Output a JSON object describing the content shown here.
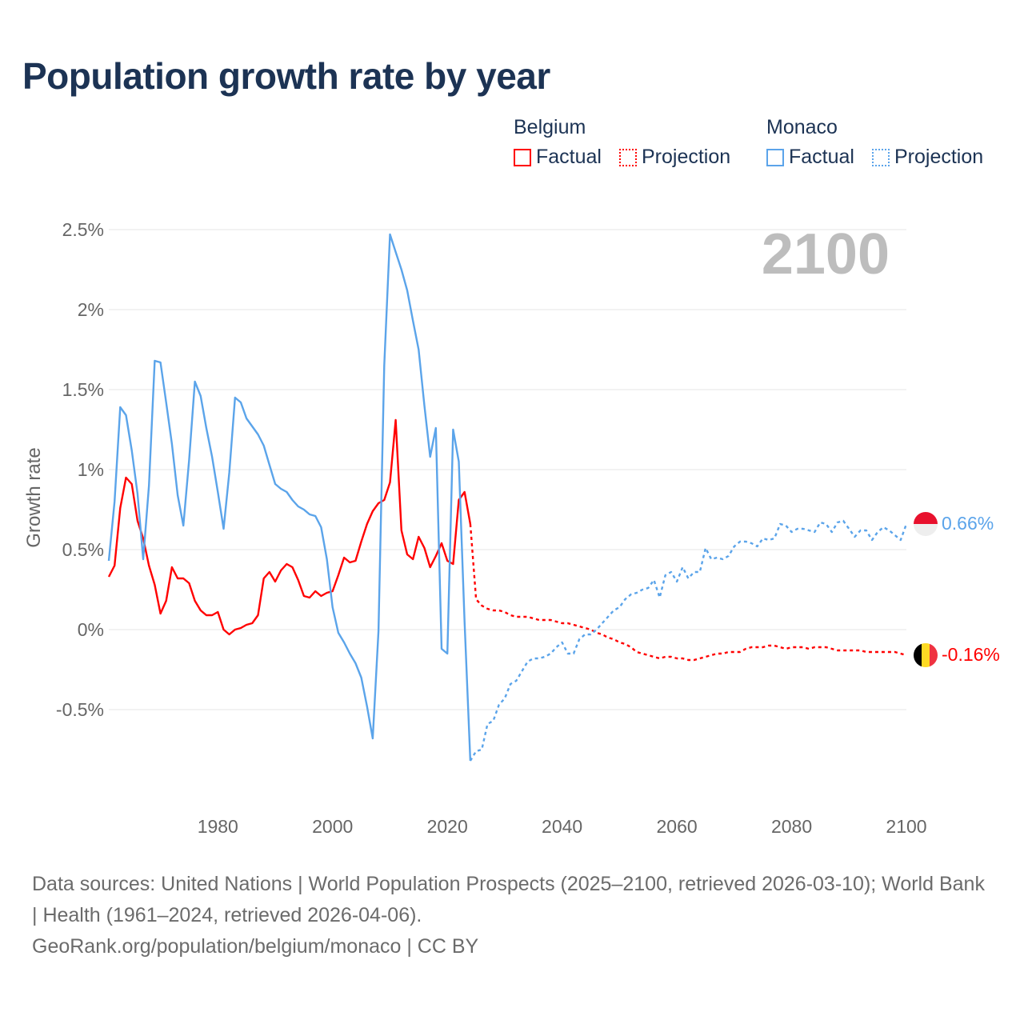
{
  "title": "Population growth rate by year",
  "legend": {
    "belgium": {
      "name": "Belgium",
      "factual": "Factual",
      "projection": "Projection"
    },
    "monaco": {
      "name": "Monaco",
      "factual": "Factual",
      "projection": "Projection"
    }
  },
  "year_watermark": "2100",
  "end_labels": {
    "monaco": "0.66%",
    "belgium": "-0.16%"
  },
  "sources": {
    "line1": "Data sources: United Nations | World Population Prospects (2025–2100, retrieved 2026-03-10); World Bank | Health (1961–2024, retrieved 2026-04-06).",
    "line2": "GeoRank.org/population/belgium/monaco | CC BY"
  },
  "colors": {
    "belgium": "#ff0000",
    "monaco": "#5ba4ea",
    "title": "#1c3354",
    "grid": "#e6e6e6",
    "watermark": "#bdbdbd"
  },
  "chart_data": {
    "type": "line",
    "title": "Population growth rate by year",
    "xlabel": "",
    "ylabel": "Growth rate",
    "xlim": [
      1961,
      2100
    ],
    "ylim": [
      -1.1,
      2.6
    ],
    "grid": true,
    "legend_position": "top-right",
    "x_ticks": [
      1980,
      2000,
      2020,
      2040,
      2060,
      2080,
      2100
    ],
    "y_ticks": [
      {
        "v": 2.5,
        "label": "2.5%"
      },
      {
        "v": 2,
        "label": "2%"
      },
      {
        "v": 1.5,
        "label": "1.5%"
      },
      {
        "v": 1,
        "label": "1%"
      },
      {
        "v": 0.5,
        "label": "0.5%"
      },
      {
        "v": 0,
        "label": "0%"
      },
      {
        "v": -0.5,
        "label": "-0.5%"
      }
    ],
    "series": [
      {
        "name": "Belgium Factual",
        "key": "belgium",
        "dashed": false,
        "start": 1961,
        "values": [
          0.33,
          0.4,
          0.76,
          0.95,
          0.91,
          0.68,
          0.57,
          0.4,
          0.28,
          0.1,
          0.18,
          0.39,
          0.32,
          0.32,
          0.29,
          0.18,
          0.12,
          0.09,
          0.09,
          0.11,
          0.0,
          -0.03,
          0.0,
          0.01,
          0.03,
          0.04,
          0.09,
          0.32,
          0.36,
          0.3,
          0.37,
          0.41,
          0.39,
          0.31,
          0.21,
          0.2,
          0.24,
          0.21,
          0.23,
          0.24,
          0.34,
          0.45,
          0.42,
          0.43,
          0.55,
          0.66,
          0.74,
          0.79,
          0.81,
          0.92,
          1.31,
          0.62,
          0.47,
          0.44,
          0.58,
          0.51,
          0.39,
          0.46,
          0.54,
          0.43,
          0.41,
          0.81,
          0.86,
          0.66
        ]
      },
      {
        "name": "Belgium Projection",
        "key": "belgium",
        "dashed": true,
        "start": 2024,
        "values": [
          0.66,
          0.19,
          0.15,
          0.13,
          0.12,
          0.12,
          0.11,
          0.09,
          0.08,
          0.08,
          0.08,
          0.07,
          0.06,
          0.06,
          0.06,
          0.05,
          0.04,
          0.04,
          0.03,
          0.02,
          0.01,
          0.0,
          -0.02,
          -0.03,
          -0.05,
          -0.06,
          -0.08,
          -0.09,
          -0.11,
          -0.14,
          -0.15,
          -0.16,
          -0.17,
          -0.18,
          -0.17,
          -0.17,
          -0.18,
          -0.18,
          -0.19,
          -0.19,
          -0.18,
          -0.17,
          -0.16,
          -0.15,
          -0.15,
          -0.14,
          -0.14,
          -0.14,
          -0.12,
          -0.11,
          -0.11,
          -0.11,
          -0.1,
          -0.1,
          -0.11,
          -0.12,
          -0.11,
          -0.11,
          -0.11,
          -0.12,
          -0.11,
          -0.11,
          -0.11,
          -0.12,
          -0.13,
          -0.13,
          -0.13,
          -0.13,
          -0.13,
          -0.14,
          -0.14,
          -0.14,
          -0.14,
          -0.14,
          -0.14,
          -0.15,
          -0.16
        ]
      },
      {
        "name": "Monaco Factual",
        "key": "monaco",
        "dashed": false,
        "start": 1961,
        "values": [
          0.43,
          0.8,
          1.39,
          1.34,
          1.12,
          0.85,
          0.44,
          0.9,
          1.68,
          1.67,
          1.42,
          1.16,
          0.84,
          0.65,
          1.06,
          1.55,
          1.46,
          1.26,
          1.08,
          0.86,
          0.63,
          0.98,
          1.45,
          1.42,
          1.32,
          1.27,
          1.22,
          1.15,
          1.03,
          0.91,
          0.88,
          0.86,
          0.81,
          0.77,
          0.75,
          0.72,
          0.71,
          0.64,
          0.44,
          0.14,
          -0.02,
          -0.08,
          -0.15,
          -0.21,
          -0.3,
          -0.48,
          -0.68,
          -0.01,
          1.65,
          2.47,
          2.36,
          2.25,
          2.12,
          1.93,
          1.75,
          1.4,
          1.08,
          1.26,
          -0.12,
          -0.15,
          1.25,
          1.05,
          0.05,
          -0.82
        ]
      },
      {
        "name": "Monaco Projection",
        "key": "monaco",
        "dashed": true,
        "start": 2024,
        "values": [
          -0.82,
          -0.76,
          -0.75,
          -0.59,
          -0.57,
          -0.47,
          -0.43,
          -0.34,
          -0.32,
          -0.26,
          -0.2,
          -0.18,
          -0.18,
          -0.17,
          -0.15,
          -0.11,
          -0.08,
          -0.15,
          -0.15,
          -0.06,
          -0.03,
          -0.03,
          0.0,
          0.04,
          0.08,
          0.12,
          0.14,
          0.19,
          0.22,
          0.23,
          0.25,
          0.26,
          0.31,
          0.2,
          0.34,
          0.36,
          0.3,
          0.39,
          0.32,
          0.36,
          0.36,
          0.51,
          0.44,
          0.45,
          0.44,
          0.46,
          0.52,
          0.55,
          0.55,
          0.54,
          0.52,
          0.57,
          0.56,
          0.57,
          0.66,
          0.65,
          0.61,
          0.63,
          0.63,
          0.62,
          0.61,
          0.67,
          0.66,
          0.61,
          0.67,
          0.68,
          0.63,
          0.58,
          0.62,
          0.62,
          0.56,
          0.61,
          0.64,
          0.62,
          0.59,
          0.56,
          0.66
        ]
      }
    ]
  }
}
